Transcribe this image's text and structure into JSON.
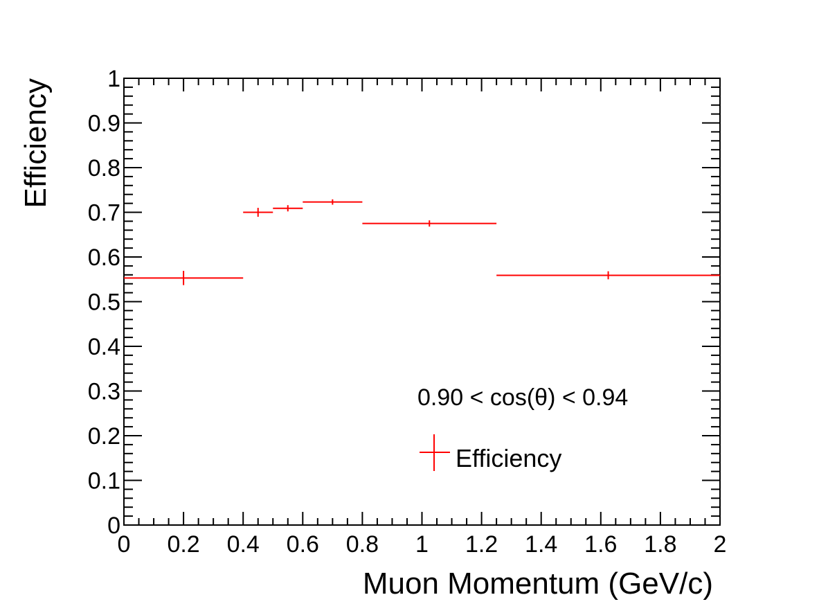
{
  "chart_data": {
    "type": "scatter",
    "title": "",
    "xlabel": "Muon Momentum (GeV/c)",
    "ylabel": "Efficiency",
    "xlim": [
      0,
      2
    ],
    "ylim": [
      0,
      1
    ],
    "x_ticks": [
      "0",
      "0.2",
      "0.4",
      "0.6",
      "0.8",
      "1",
      "1.2",
      "1.4",
      "1.6",
      "1.8",
      "2"
    ],
    "y_ticks": [
      "0",
      "0.1",
      "0.2",
      "0.3",
      "0.4",
      "0.5",
      "0.6",
      "0.7",
      "0.8",
      "0.9",
      "1"
    ],
    "annotation": "0.90 < cos(θ) < 0.94",
    "legend": {
      "position": "bottom-right",
      "entries": [
        "Efficiency"
      ]
    },
    "series": [
      {
        "name": "Efficiency",
        "color": "#ff0000",
        "points": [
          {
            "x": 0.2,
            "y": 0.553,
            "xlo": 0.0,
            "xhi": 0.4,
            "yerr": 0.016
          },
          {
            "x": 0.45,
            "y": 0.7,
            "xlo": 0.4,
            "xhi": 0.5,
            "yerr": 0.01
          },
          {
            "x": 0.55,
            "y": 0.709,
            "xlo": 0.5,
            "xhi": 0.6,
            "yerr": 0.007
          },
          {
            "x": 0.7,
            "y": 0.723,
            "xlo": 0.6,
            "xhi": 0.8,
            "yerr": 0.006
          },
          {
            "x": 1.025,
            "y": 0.675,
            "xlo": 0.8,
            "xhi": 1.25,
            "yerr": 0.007
          },
          {
            "x": 1.625,
            "y": 0.559,
            "xlo": 1.25,
            "xhi": 2.0,
            "yerr": 0.009
          }
        ]
      }
    ]
  }
}
